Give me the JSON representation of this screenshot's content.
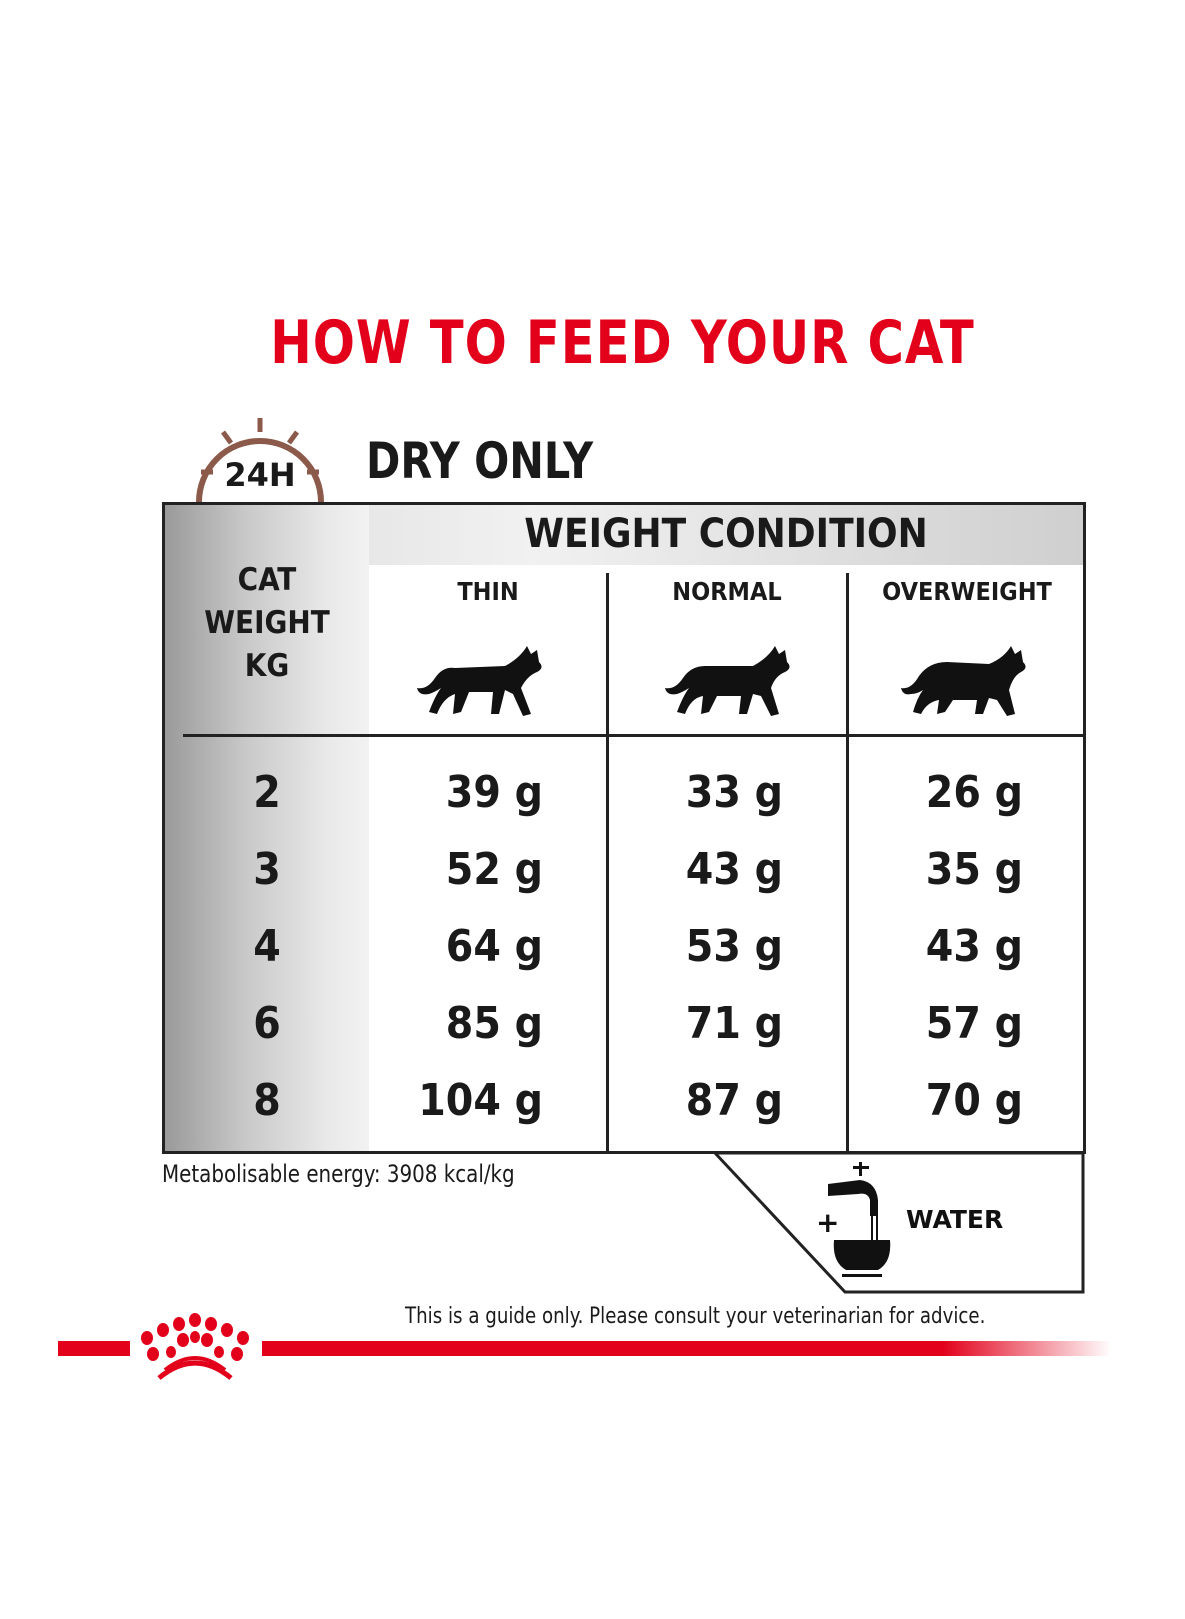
{
  "title": "HOW TO FEED YOUR CAT",
  "badge": "24H",
  "subtitle": "DRY ONLY",
  "table": {
    "group_header": "WEIGHT CONDITION",
    "row_header": [
      "CAT",
      "WEIGHT",
      "KG"
    ],
    "columns": [
      "THIN",
      "NORMAL",
      "OVERWEIGHT"
    ],
    "rows": [
      {
        "kg": "2",
        "values": [
          "39 g",
          "33 g",
          "26 g"
        ]
      },
      {
        "kg": "3",
        "values": [
          "52 g",
          "43 g",
          "35 g"
        ]
      },
      {
        "kg": "4",
        "values": [
          "64 g",
          "53 g",
          "43 g"
        ]
      },
      {
        "kg": "6",
        "values": [
          "85 g",
          "71 g",
          "57 g"
        ]
      },
      {
        "kg": "8",
        "values": [
          "104 g",
          "87 g",
          "70 g"
        ]
      }
    ]
  },
  "energy": "Metabolisable energy: 3908 kcal/kg",
  "water": {
    "plus": "+",
    "label": "WATER"
  },
  "disclaimer": "This is a guide only. Please consult your veterinarian for advice.",
  "colors": {
    "brand_red": "#e2001a",
    "clock_brown": "#8b5a4a"
  }
}
